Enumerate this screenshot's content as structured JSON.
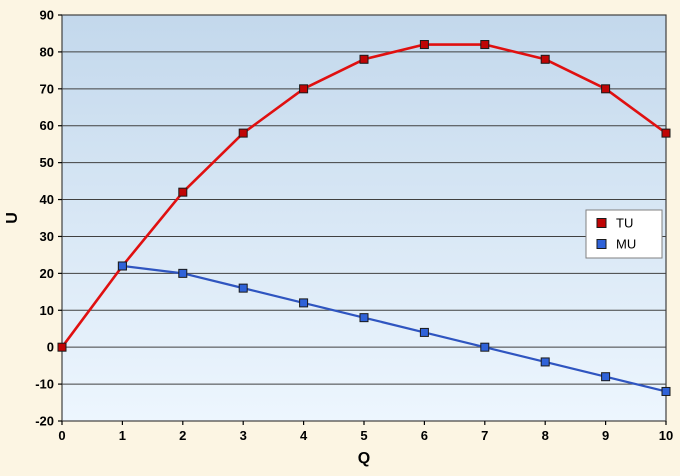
{
  "chart_data": {
    "type": "line",
    "title": "",
    "xlabel": "Q",
    "ylabel": "U",
    "xlim": [
      0,
      10
    ],
    "ylim": [
      -20,
      90
    ],
    "x_ticks": [
      0,
      1,
      2,
      3,
      4,
      5,
      6,
      7,
      8,
      9,
      10
    ],
    "y_ticks": [
      -20,
      -10,
      0,
      10,
      20,
      30,
      40,
      50,
      60,
      70,
      80,
      90
    ],
    "grid": true,
    "legend_position": "middle-right",
    "legend_entries": [
      "TU",
      "MU"
    ],
    "series": [
      {
        "name": "TU",
        "line_color": "#e01010",
        "marker_color": "#c00505",
        "marker_shape": "square",
        "x": [
          0,
          1,
          2,
          3,
          4,
          5,
          6,
          7,
          8,
          9,
          10
        ],
        "values": [
          0,
          22,
          42,
          58,
          70,
          78,
          82,
          82,
          78,
          70,
          58
        ]
      },
      {
        "name": "MU",
        "line_color": "#2f55c0",
        "marker_color": "#2f62d8",
        "marker_shape": "square",
        "x": [
          1,
          2,
          3,
          4,
          5,
          6,
          7,
          8,
          9,
          10
        ],
        "values": [
          22,
          20,
          16,
          12,
          8,
          4,
          0,
          -4,
          -8,
          -12
        ]
      }
    ],
    "colors": {
      "page_bg": "#fcf5e3",
      "plot_bg_top": "#c3d8ec",
      "plot_bg_bottom": "#edf6fe",
      "gridline": "#404040",
      "plot_border": "#404040",
      "legend_bg": "#ffffff",
      "legend_border": "#808080",
      "tick": "#000000"
    }
  }
}
